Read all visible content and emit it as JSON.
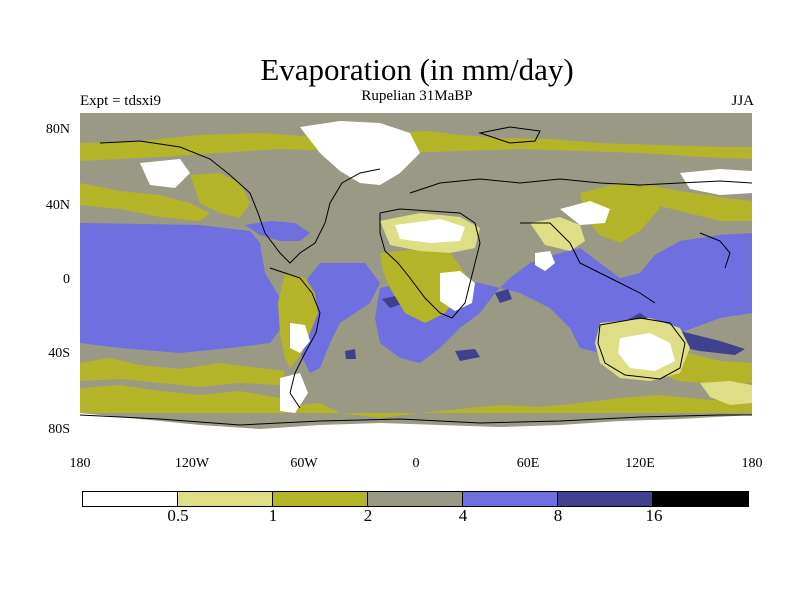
{
  "title": "Evaporation (in mm/day)",
  "subtitle": "Rupelian  31MaBP",
  "left_label": "Expt = tdsxi9",
  "right_label": "JJA",
  "lat_ticks": [
    "80N",
    "40N",
    "0",
    "40S",
    "80S"
  ],
  "lon_ticks": [
    "180",
    "120W",
    "60W",
    "0",
    "60E",
    "120E",
    "180"
  ],
  "colorbar": {
    "colors": [
      "#ffffff",
      "#dede86",
      "#b4b428",
      "#999986",
      "#6f6fe0",
      "#40408f",
      "#000000"
    ],
    "labels": [
      "0.5",
      "1",
      "2",
      "4",
      "8",
      "16"
    ]
  },
  "palette": {
    "white": "#ffffff",
    "light_yellow": "#dede86",
    "olive": "#b4b428",
    "gray": "#999986",
    "blue": "#6f6fe0",
    "dark_blue": "#40408f"
  }
}
